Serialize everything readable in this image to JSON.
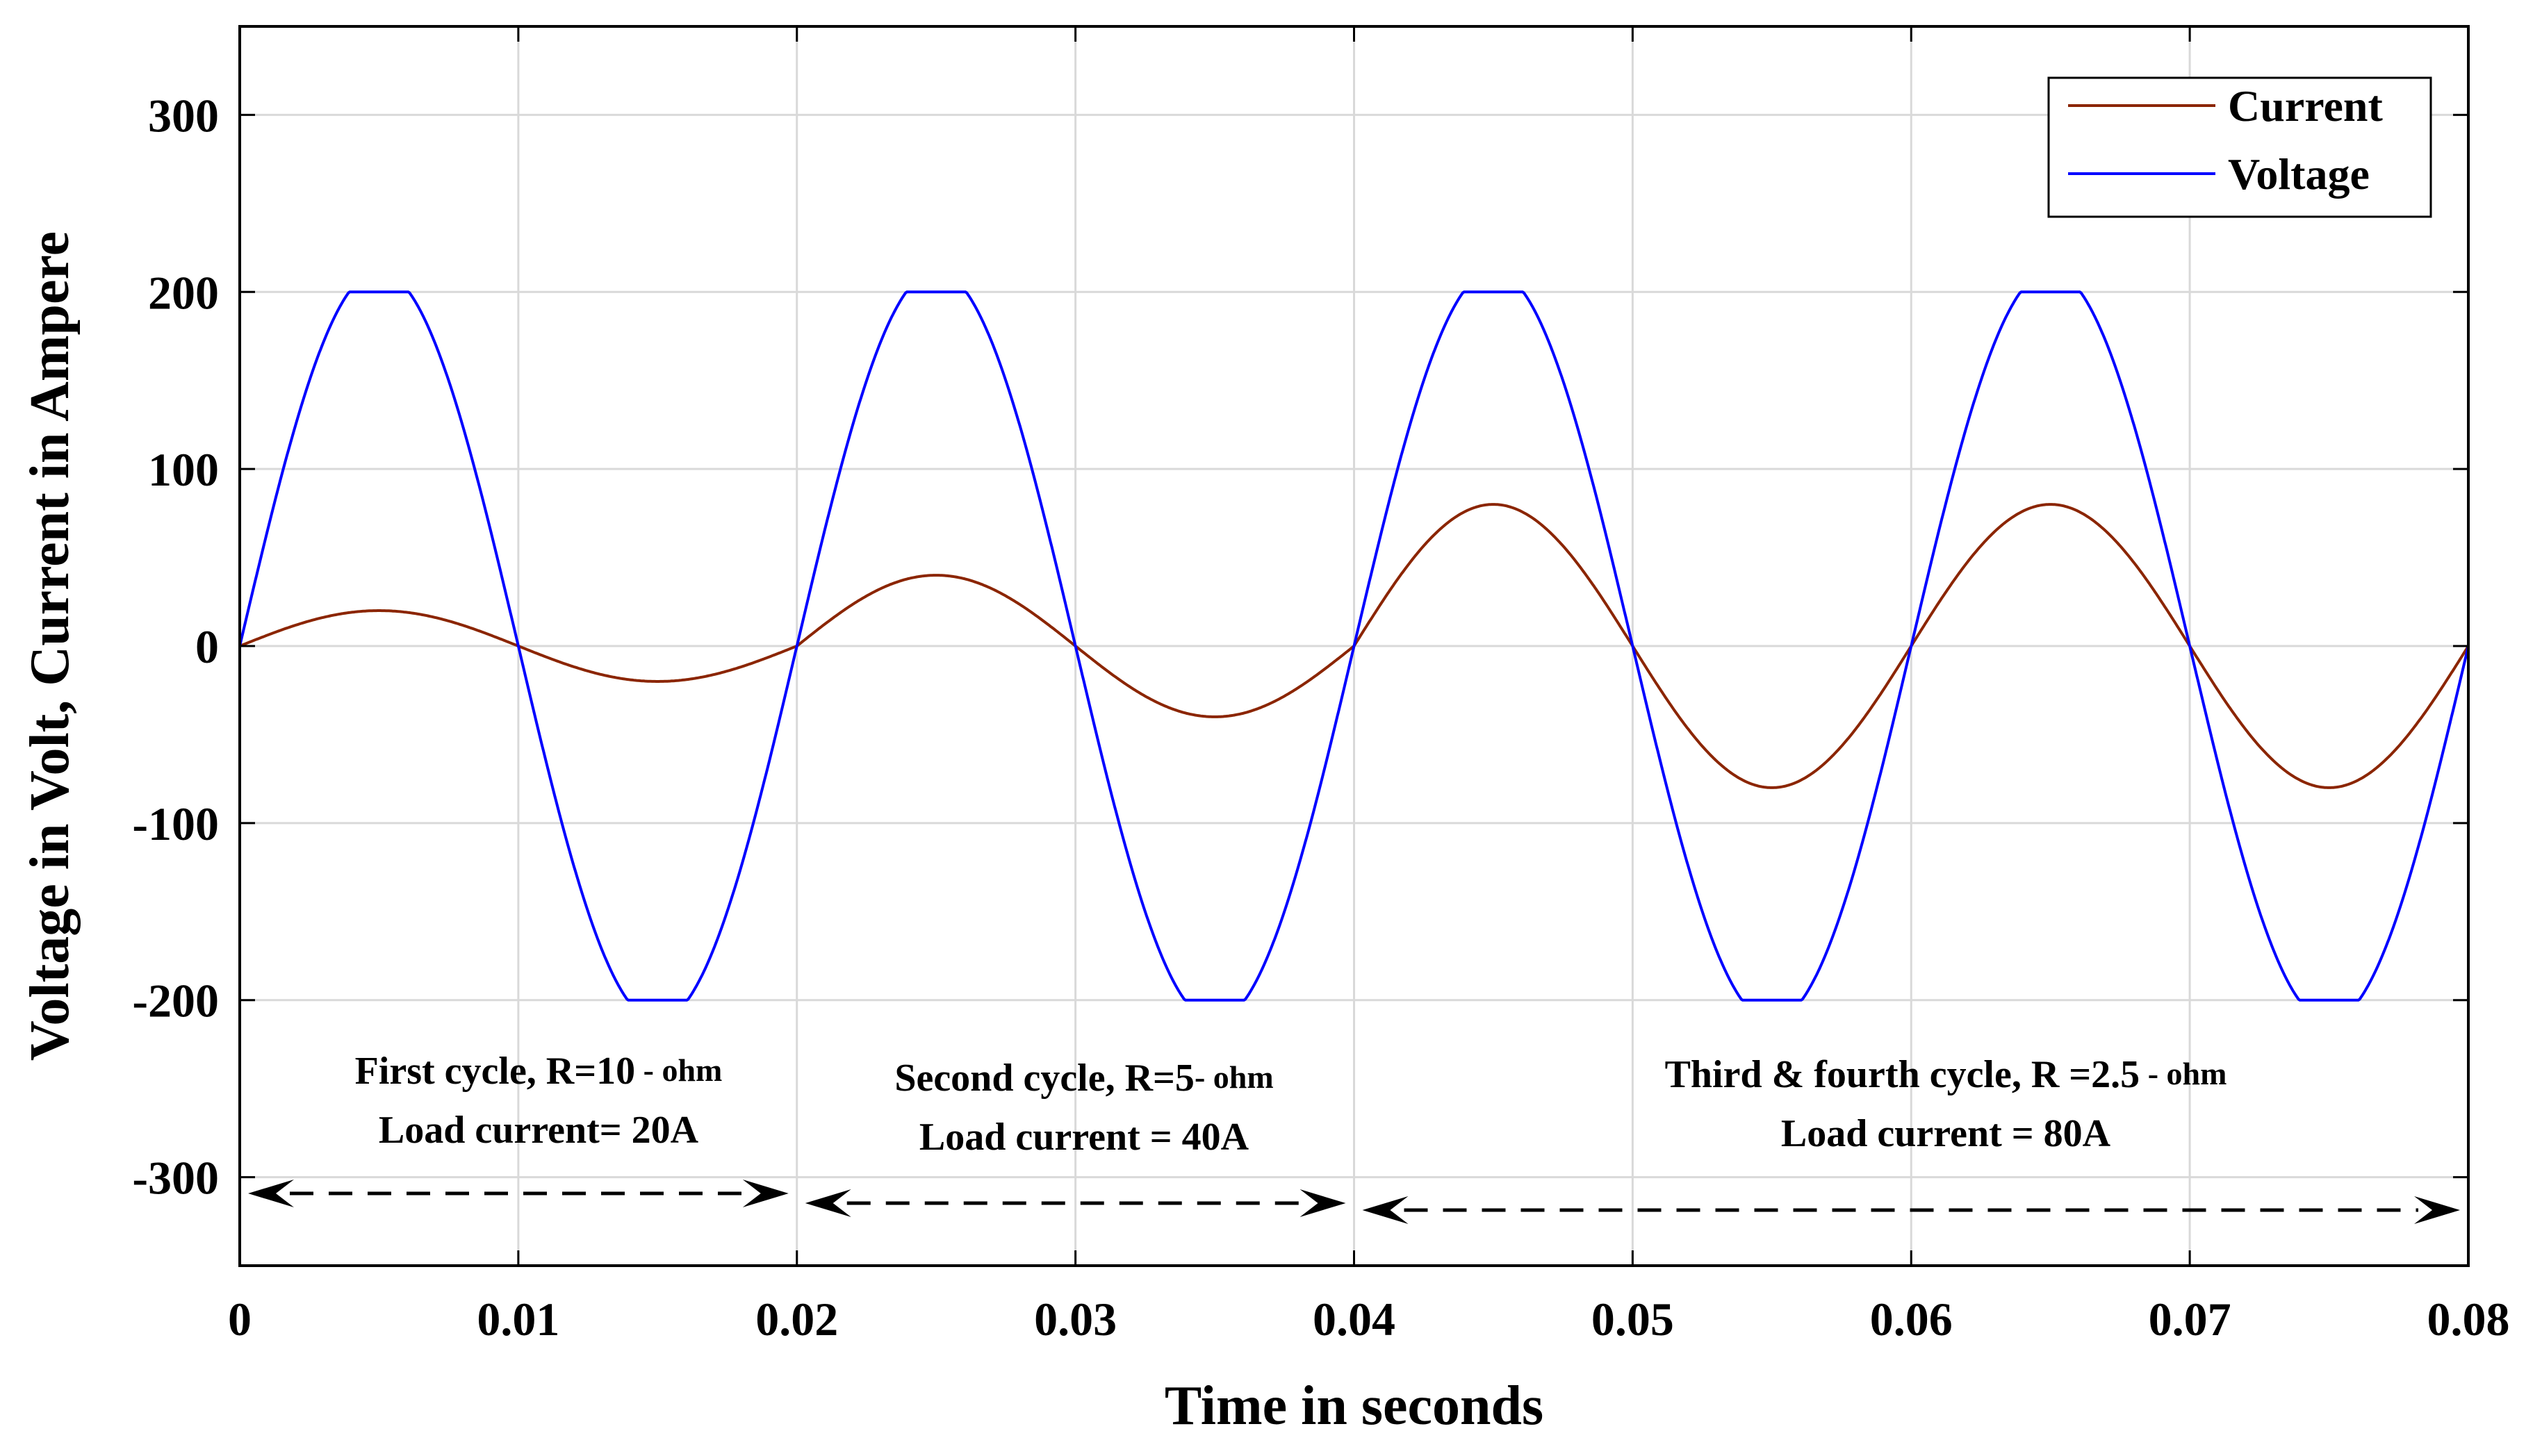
{
  "chart_data": {
    "type": "line",
    "title": "",
    "xlabel": "Time in seconds",
    "ylabel": "Voltage in Volt, Current in Ampere",
    "xlim": [
      0,
      0.08
    ],
    "ylim": [
      -350,
      350
    ],
    "xticks": [
      "0",
      "0.01",
      "0.02",
      "0.03",
      "0.04",
      "0.05",
      "0.06",
      "0.07",
      "0.08"
    ],
    "yticks": [
      "300",
      "200",
      "100",
      "0",
      "-100",
      "-200",
      "-300"
    ],
    "xtick_values": [
      0,
      0.01,
      0.02,
      0.03,
      0.04,
      0.05,
      0.06,
      0.07,
      0.08
    ],
    "ytick_values": [
      300,
      200,
      100,
      0,
      -100,
      -200,
      -300
    ],
    "grid": true,
    "legend_position": "top-right",
    "frequency_hz": 50,
    "series": [
      {
        "name": "Current",
        "color": "#8b2500",
        "description": "sinusoid, amplitude per cycle",
        "cycle_amplitudes": [
          20,
          40,
          80,
          80
        ]
      },
      {
        "name": "Voltage",
        "color": "#0000ff",
        "description": "sinusoid, clipped/flattened peaks",
        "amplitude": 200
      }
    ],
    "annotations": [
      {
        "line1_main": "First cycle, R=10",
        "line1_unit": " - ohm",
        "line2": "Load current= 20A",
        "span": [
          0,
          0.02
        ]
      },
      {
        "line1_main": "Second cycle, R=5",
        "line1_unit": "- ohm",
        "line2": "Load current = 40A",
        "span": [
          0.02,
          0.04
        ]
      },
      {
        "line1_main": "Third & fourth cycle, R =2.5",
        "line1_unit": " - ohm",
        "line2": "Load current = 80A",
        "span": [
          0.04,
          0.08
        ]
      }
    ]
  }
}
